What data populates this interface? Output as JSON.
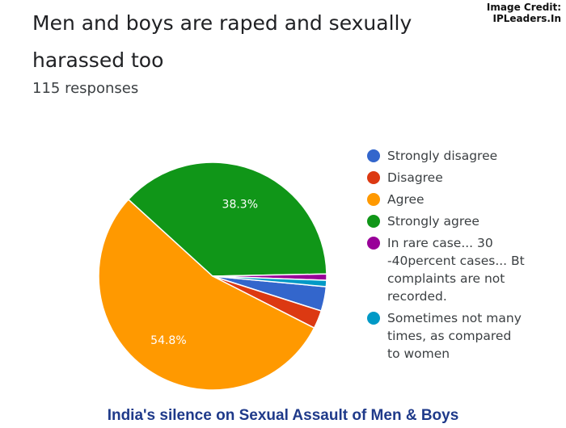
{
  "credit": {
    "line1": "Image Credit:",
    "line2": "IPLeaders.In"
  },
  "header": {
    "title": "Men and boys are raped and sexually harassed too",
    "responses": "115 responses"
  },
  "chart_data": {
    "type": "pie",
    "title": "Men and boys are raped and sexually harassed too",
    "categories": [
      "Strongly disagree",
      "Disagree",
      "Agree",
      "Strongly agree",
      "In rare case... 30 -40percent cases... Bt complaints are not recorded.",
      "Sometimes not many times, as compared to women"
    ],
    "values": [
      3.5,
      2.6,
      54.8,
      38.3,
      0.9,
      0.9
    ],
    "slice_labels": [
      "",
      "",
      "54.8%",
      "38.3%",
      "",
      ""
    ],
    "colors": [
      "#3366cc",
      "#dc3912",
      "#ff9900",
      "#109618",
      "#990099",
      "#0099c6"
    ],
    "legend_position": "right"
  },
  "footer": {
    "caption": "India's silence on Sexual Assault of Men & Boys"
  }
}
